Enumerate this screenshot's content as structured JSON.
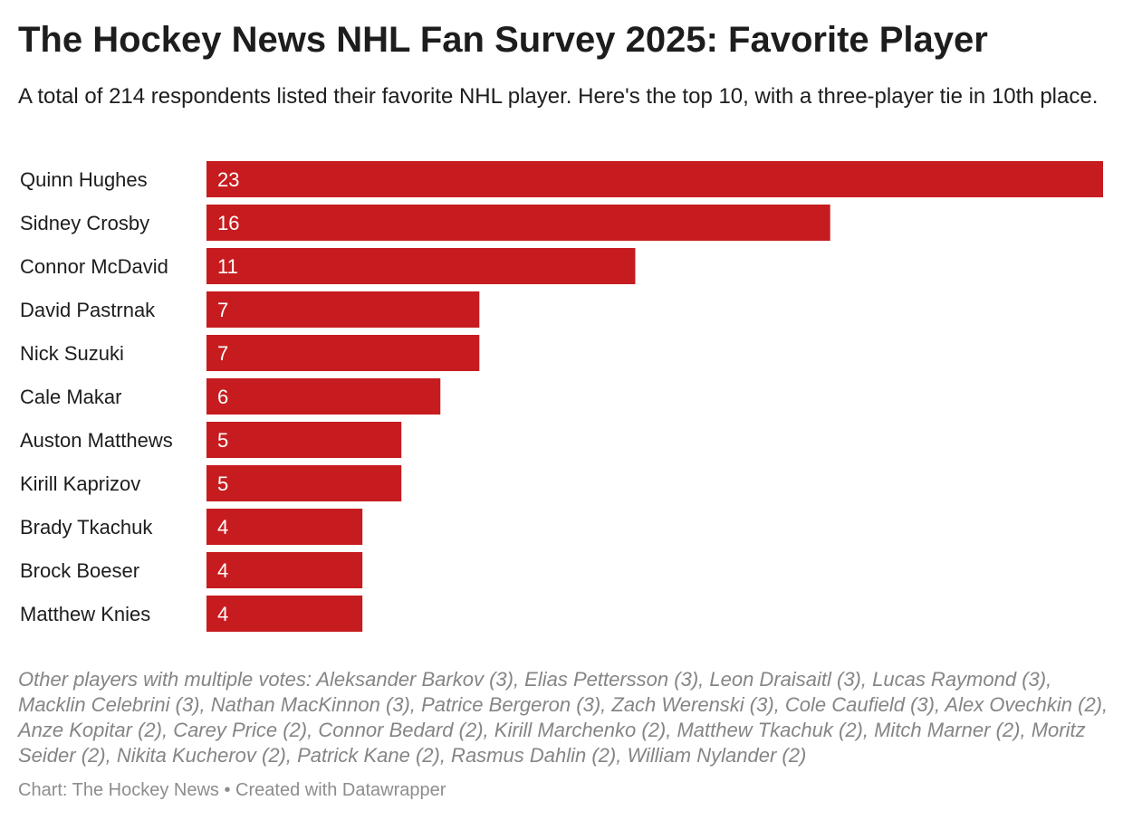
{
  "header": {
    "title": "The Hockey News NHL Fan Survey 2025: Favorite Player",
    "subtitle": "A total of 214 respondents listed their favorite NHL player. Here's the top 10, with a three-player tie in 10th place."
  },
  "chart_data": {
    "type": "bar",
    "orientation": "horizontal",
    "categories": [
      "Quinn Hughes",
      "Sidney Crosby",
      "Connor McDavid",
      "David Pastrnak",
      "Nick Suzuki",
      "Cale Makar",
      "Auston Matthews",
      "Kirill Kaprizov",
      "Brady Tkachuk",
      "Brock Boeser",
      "Matthew Knies"
    ],
    "values": [
      23,
      16,
      11,
      7,
      7,
      6,
      5,
      5,
      4,
      4,
      4
    ],
    "xlim": [
      0,
      23
    ],
    "bar_color": "#c71c1f",
    "value_label_color": "#ffffff",
    "grid": false,
    "value_labels": "inside-start"
  },
  "notes": "Other players with multiple votes: Aleksander Barkov (3), Elias Pettersson (3), Leon Draisaitl (3), Lucas Raymond (3), Macklin Celebrini (3), Nathan MacKinnon (3), Patrice Bergeron (3), Zach Werenski (3), Cole Caufield (3), Alex Ovechkin (2), Anze Kopitar (2), Carey Price (2), Connor Bedard (2), Kirill Marchenko (2), Matthew Tkachuk (2), Mitch Marner (2), Moritz Seider (2), Nikita Kucherov (2), Patrick Kane (2), Rasmus Dahlin (2), William Nylander (2)",
  "footer": {
    "source": "Chart: The Hockey News • Created with Datawrapper"
  }
}
